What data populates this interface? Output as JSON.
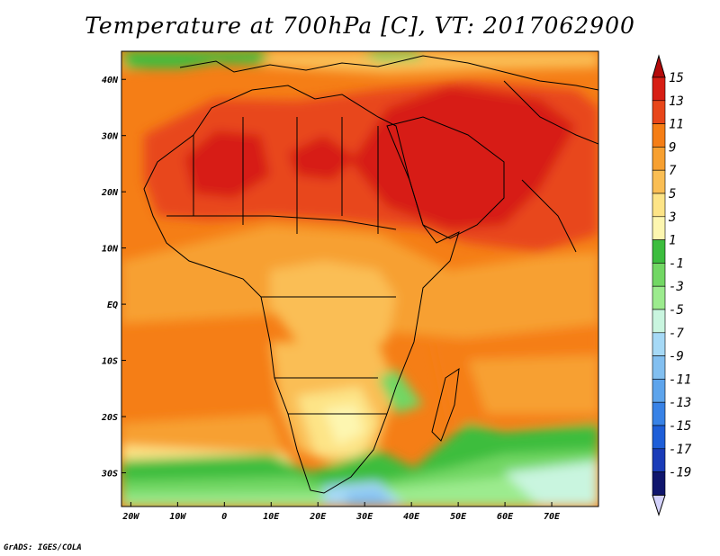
{
  "title": "Temperature at 700hPa [C], VT: 2017062900",
  "credit": "GrADS: IGES/COLA",
  "map": {
    "lon_range": [
      -22,
      80
    ],
    "lat_range": [
      -36,
      45
    ],
    "lon_ticks": [
      {
        "value": -20,
        "label": "20W"
      },
      {
        "value": -10,
        "label": "10W"
      },
      {
        "value": 0,
        "label": "0"
      },
      {
        "value": 10,
        "label": "10E"
      },
      {
        "value": 20,
        "label": "20E"
      },
      {
        "value": 30,
        "label": "30E"
      },
      {
        "value": 40,
        "label": "40E"
      },
      {
        "value": 50,
        "label": "50E"
      },
      {
        "value": 60,
        "label": "60E"
      },
      {
        "value": 70,
        "label": "70E"
      }
    ],
    "lat_ticks": [
      {
        "value": 40,
        "label": "40N"
      },
      {
        "value": 30,
        "label": "30N"
      },
      {
        "value": 20,
        "label": "20N"
      },
      {
        "value": 10,
        "label": "10N"
      },
      {
        "value": 0,
        "label": "EQ"
      },
      {
        "value": -10,
        "label": "10S"
      },
      {
        "value": -20,
        "label": "20S"
      },
      {
        "value": -30,
        "label": "30S"
      }
    ]
  },
  "colorbar": {
    "levels": [
      "15",
      "13",
      "11",
      "9",
      "7",
      "5",
      "3",
      "1",
      "-1",
      "-3",
      "-5",
      "-7",
      "-9",
      "-11",
      "-13",
      "-15",
      "-17",
      "-19"
    ],
    "colors": [
      "#d71e14",
      "#e8461a",
      "#f57e16",
      "#f7a031",
      "#fabe54",
      "#fde487",
      "#fdf6b0",
      "#3cbd3e",
      "#72d764",
      "#9ceb8e",
      "#c9f5df",
      "#a6d9f6",
      "#82bff0",
      "#5da4ec",
      "#3882e6",
      "#1e5ed8",
      "#1a3cb8",
      "#10166d"
    ],
    "top_arrow_color": "#b40a0a",
    "bottom_arrow_color": "#d4d2fc"
  },
  "field_colors": {
    "green": "#3cbd3e",
    "light_green": "#72d764",
    "pale_green": "#9ceb8e",
    "pale_yellow": "#fdf6b0",
    "yellow": "#fde487",
    "light_orange": "#fabe54",
    "orange": "#f7a031",
    "dark_orange": "#f57e16",
    "red_orange": "#e8461a",
    "red": "#d71e14",
    "sky": "#c9f5df",
    "light_blue": "#a6d9f6",
    "blue": "#82bff0"
  }
}
